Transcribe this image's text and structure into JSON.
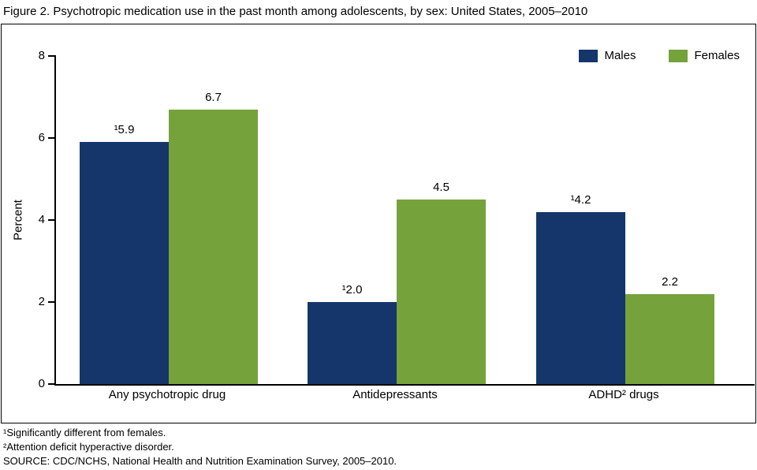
{
  "figure": {
    "title": "Figure 2. Psychotropic medication use in the past month among adolescents, by sex: United States, 2005–2010"
  },
  "legend": {
    "items": [
      {
        "label": "Males",
        "color": "#14366a"
      },
      {
        "label": "Females",
        "color": "#76a23c"
      }
    ]
  },
  "footnotes": [
    "¹Significantly different from females.",
    "²Attention deficit hyperactive disorder.",
    "SOURCE: CDC/NCHS, National Health and Nutrition Examination Survey, 2005–2010."
  ],
  "chart_data": {
    "type": "bar",
    "title": "Psychotropic medication use in the past month among adolescents, by sex: United States, 2005–2010",
    "categories": [
      "Any psychotropic drug",
      "Antidepressants",
      "ADHD² drugs"
    ],
    "series": [
      {
        "name": "Males",
        "color": "#14366a",
        "values": [
          5.9,
          2.0,
          4.2
        ],
        "labels": [
          "¹5.9",
          "¹2.0",
          "¹4.2"
        ]
      },
      {
        "name": "Females",
        "color": "#76a23c",
        "values": [
          6.7,
          4.5,
          2.2
        ],
        "labels": [
          "6.7",
          "4.5",
          "2.2"
        ]
      }
    ],
    "xlabel": "",
    "ylabel": "Percent",
    "ylim": [
      0,
      8
    ],
    "yticks": [
      0,
      2,
      4,
      6,
      8
    ],
    "grid": false,
    "legend_position": "top-right"
  }
}
